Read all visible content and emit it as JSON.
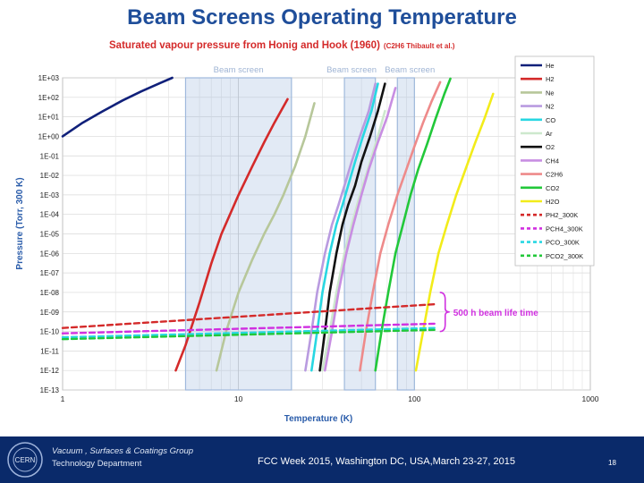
{
  "slide": {
    "title": "Beam Screens Operating Temperature"
  },
  "chart_data": {
    "type": "line",
    "title": "Saturated vapour pressure from Honig and Hook (1960)",
    "title_note": "(C2H6 Thibault et al.)",
    "xlabel": "Temperature (K)",
    "ylabel": "Pressure (Torr, 300 K)",
    "xscale": "log",
    "yscale": "log",
    "xlim": [
      1,
      1000
    ],
    "ylim": [
      1e-13,
      1000
    ],
    "x_ticks": [
      "1",
      "10",
      "100",
      "1000"
    ],
    "y_ticks": [
      "1E+03",
      "1E+02",
      "1E+01",
      "1E+00",
      "1E-01",
      "1E-02",
      "1E-03",
      "1E-04",
      "1E-05",
      "1E-06",
      "1E-07",
      "1E-08",
      "1E-09",
      "1E-10",
      "1E-11",
      "1E-12",
      "1E-13"
    ],
    "grid": true,
    "legend_position": "right",
    "series": [
      {
        "name": "He",
        "color": "#10207a",
        "dash": "solid",
        "x": [
          1,
          1.3,
          1.7,
          2.2,
          2.8,
          3.6,
          4.2
        ],
        "y": [
          1,
          5,
          20,
          70,
          200,
          550,
          1000
        ]
      },
      {
        "name": "H2",
        "color": "#d42a2a",
        "dash": "solid",
        "x": [
          4.4,
          5,
          6,
          7,
          8,
          10,
          12,
          14,
          16,
          19
        ],
        "y": [
          1e-12,
          2e-11,
          3e-09,
          3e-07,
          1e-05,
          0.001,
          0.03,
          0.5,
          5,
          80
        ]
      },
      {
        "name": "Ne",
        "color": "#b7c79a",
        "dash": "solid",
        "x": [
          7.5,
          8.5,
          10,
          12,
          14,
          16,
          18,
          21,
          24,
          27
        ],
        "y": [
          1e-12,
          1e-10,
          1e-08,
          5e-07,
          1e-05,
          0.0001,
          0.001,
          0.03,
          1,
          50
        ]
      },
      {
        "name": "N2",
        "color": "#b99be0",
        "dash": "solid",
        "x": [
          24,
          26,
          28,
          31,
          34,
          37,
          40,
          44,
          49,
          55,
          60
        ],
        "y": [
          1e-12,
          1e-10,
          1e-08,
          1e-06,
          3e-05,
          0.0003,
          0.003,
          0.05,
          1,
          20,
          500
        ]
      },
      {
        "name": "CO",
        "color": "#28d7e2",
        "dash": "solid",
        "x": [
          26,
          28,
          30,
          33,
          36,
          39,
          42,
          46,
          51,
          57,
          62
        ],
        "y": [
          1e-12,
          1e-10,
          1e-08,
          1e-06,
          3e-05,
          0.0003,
          0.003,
          0.05,
          1,
          20,
          500
        ]
      },
      {
        "name": "Ar",
        "color": "#cde8cd",
        "dash": "solid",
        "x": [
          30,
          33,
          36,
          40,
          44,
          49,
          55,
          62,
          68
        ],
        "y": [
          1e-12,
          1e-10,
          1e-08,
          1e-06,
          3e-05,
          0.001,
          0.03,
          1,
          20
        ]
      },
      {
        "name": "O2",
        "color": "#111111",
        "dash": "solid",
        "x": [
          29,
          31,
          33,
          36,
          39,
          42,
          46,
          50,
          56,
          62,
          68
        ],
        "y": [
          1e-12,
          1e-10,
          1e-08,
          1e-06,
          3e-05,
          0.0003,
          0.003,
          0.05,
          1,
          20,
          500
        ]
      },
      {
        "name": "CH4",
        "color": "#c88ee2",
        "dash": "solid",
        "x": [
          31,
          34,
          37,
          41,
          45,
          50,
          55,
          62,
          70,
          78
        ],
        "y": [
          1e-12,
          1e-10,
          1e-08,
          1e-06,
          3e-05,
          0.001,
          0.02,
          0.5,
          10,
          300
        ]
      },
      {
        "name": "C2H6",
        "color": "#ee8a8a",
        "dash": "solid",
        "x": [
          49,
          53,
          58,
          64,
          71,
          80,
          90,
          100,
          112,
          125,
          140
        ],
        "y": [
          1e-12,
          1e-10,
          1e-08,
          1e-06,
          3e-05,
          0.001,
          0.02,
          0.3,
          5,
          60,
          600
        ]
      },
      {
        "name": "CO2",
        "color": "#22c83a",
        "dash": "solid",
        "x": [
          60,
          65,
          71,
          78,
          86,
          95,
          105,
          118,
          132,
          148,
          160
        ],
        "y": [
          1e-12,
          1e-10,
          1e-08,
          1e-06,
          3e-05,
          0.001,
          0.02,
          0.4,
          8,
          150,
          900
        ]
      },
      {
        "name": "H2O",
        "color": "#f2ec1a",
        "dash": "solid",
        "x": [
          102,
          112,
          123,
          137,
          153,
          173,
          195,
          220,
          250,
          280
        ],
        "y": [
          1e-12,
          1e-10,
          1e-08,
          1e-06,
          3e-05,
          0.001,
          0.02,
          0.4,
          8,
          150
        ]
      },
      {
        "name": "PH2_300K",
        "color": "#d42a2a",
        "dash": "dashed",
        "x": [
          1,
          130
        ],
        "y": [
          1.5e-10,
          2.5e-09
        ]
      },
      {
        "name": "PCH4_300K",
        "color": "#d030e0",
        "dash": "dashed",
        "x": [
          1,
          130
        ],
        "y": [
          8e-11,
          2.5e-10
        ]
      },
      {
        "name": "PCO_300K",
        "color": "#28d7e2",
        "dash": "dashed",
        "x": [
          1,
          130
        ],
        "y": [
          5e-11,
          1.5e-10
        ]
      },
      {
        "name": "PCO2_300K",
        "color": "#22c83a",
        "dash": "dashed",
        "x": [
          1,
          130
        ],
        "y": [
          4e-11,
          1.2e-10
        ]
      }
    ],
    "shaded_regions": [
      {
        "label": "Beam screen",
        "xlim": [
          5,
          20
        ]
      },
      {
        "label": "Beam screen",
        "xlim": [
          40,
          60
        ]
      },
      {
        "label": "Beam screen",
        "xlim": [
          80,
          100
        ]
      }
    ],
    "annotation": {
      "text": "500 h beam life time",
      "ylim": [
        1e-10,
        1e-08
      ]
    }
  },
  "footer": {
    "logo_text": "CERN",
    "group": "Vacuum , Surfaces & Coatings Group",
    "department": "Technology Department",
    "event": "FCC Week 2015, Washington DC, USA,March 23-27, 2015",
    "page": "18"
  }
}
